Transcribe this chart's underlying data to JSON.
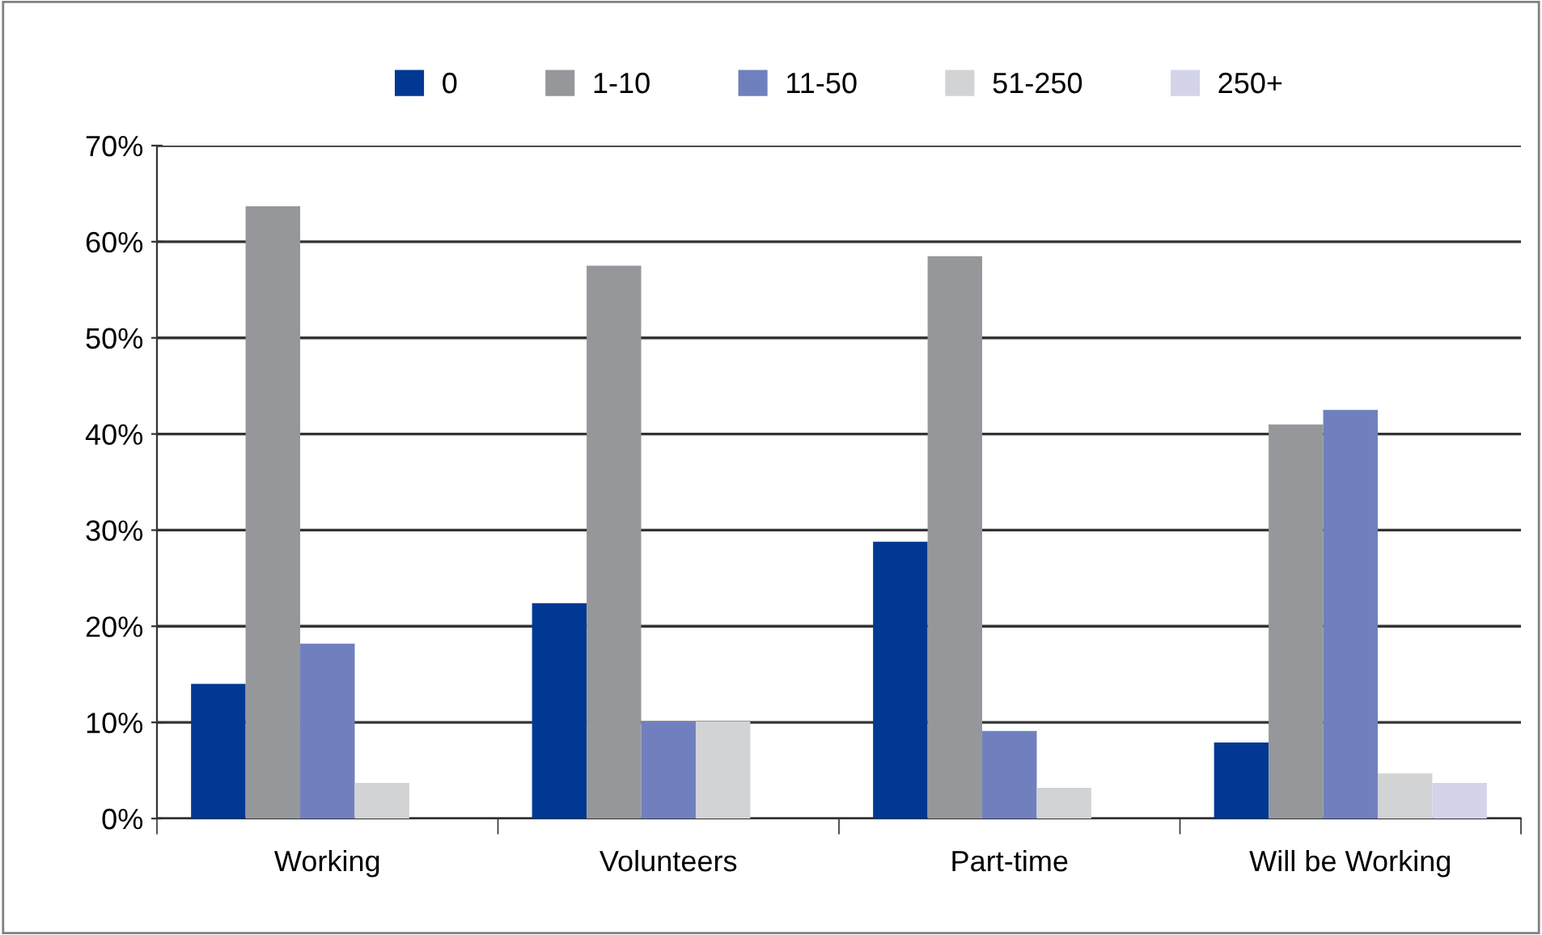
{
  "chart_data": {
    "type": "bar",
    "categories": [
      "Working",
      "Volunteers",
      "Part-time",
      "Will be Working"
    ],
    "series": [
      {
        "name": "0",
        "color": "#003893",
        "values": [
          14.0,
          22.4,
          28.8,
          7.9
        ]
      },
      {
        "name": "1-10",
        "color": "#96979a",
        "values": [
          63.7,
          57.5,
          58.5,
          41.0
        ]
      },
      {
        "name": "11-50",
        "color": "#7080be",
        "values": [
          18.2,
          10.1,
          9.1,
          42.5
        ]
      },
      {
        "name": "51-250",
        "color": "#d2d3d5",
        "values": [
          3.7,
          10.1,
          3.2,
          4.7
        ]
      },
      {
        "name": "250+",
        "color": "#d3d3ea",
        "values": [
          0,
          0,
          0,
          3.7
        ]
      }
    ],
    "ylim": [
      0,
      70
    ],
    "yticks": [
      {
        "value": 0,
        "label": "0%"
      },
      {
        "value": 10,
        "label": "10%"
      },
      {
        "value": 20,
        "label": "20%"
      },
      {
        "value": 30,
        "label": "30%"
      },
      {
        "value": 40,
        "label": "40%"
      },
      {
        "value": 50,
        "label": "50%"
      },
      {
        "value": 60,
        "label": "60%"
      },
      {
        "value": 70,
        "label": "70%"
      }
    ],
    "grid": "y",
    "legend": "top"
  }
}
